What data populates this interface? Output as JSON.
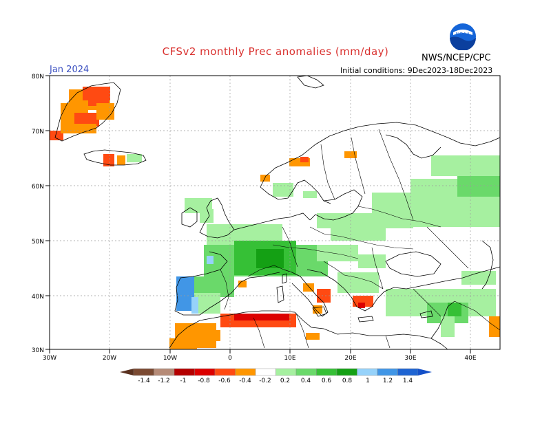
{
  "title": "CFSv2 monthly Prec anomalies (mm/day)",
  "org": "NWS/NCEP/CPC",
  "logo_text": "NOAA",
  "month": "Jan 2024",
  "initial_conditions": "Initial conditions: 9Dec2023-18Dec2023",
  "lat_labels": [
    "80N",
    "70N",
    "60N",
    "50N",
    "40N",
    "30N"
  ],
  "lon_labels": [
    "30W",
    "20W",
    "10W",
    "0",
    "10E",
    "20E",
    "30E",
    "40E"
  ],
  "colorbar": {
    "labels": [
      "-1.4",
      "-1.2",
      "-1",
      "-0.8",
      "-0.6",
      "-0.4",
      "-0.2",
      "0.2",
      "0.4",
      "0.6",
      "0.8",
      "1",
      "1.2",
      "1.4"
    ],
    "colors": [
      "#7b4a32",
      "#b68b77",
      "#b40000",
      "#dc0000",
      "#ff4a12",
      "#ff9600",
      "#ffffff",
      "#a6f0a0",
      "#6ad96a",
      "#36c036",
      "#14a014",
      "#96d2fa",
      "#4196e6",
      "#1e64d2"
    ],
    "low_arrow_color": "#5a3220",
    "high_arrow_color": "#1450c8"
  },
  "anomaly_colors": {
    "neg_strong": "#dc0000",
    "neg_mid": "#ff4a12",
    "neg_weak": "#ff9600",
    "pos_weak": "#a6f0a0",
    "pos_mid": "#6ad96a",
    "pos_strong": "#36c036",
    "pos_max": "#14a014",
    "wet_light_blue": "#96d2fa",
    "wet_blue": "#4196e6"
  }
}
